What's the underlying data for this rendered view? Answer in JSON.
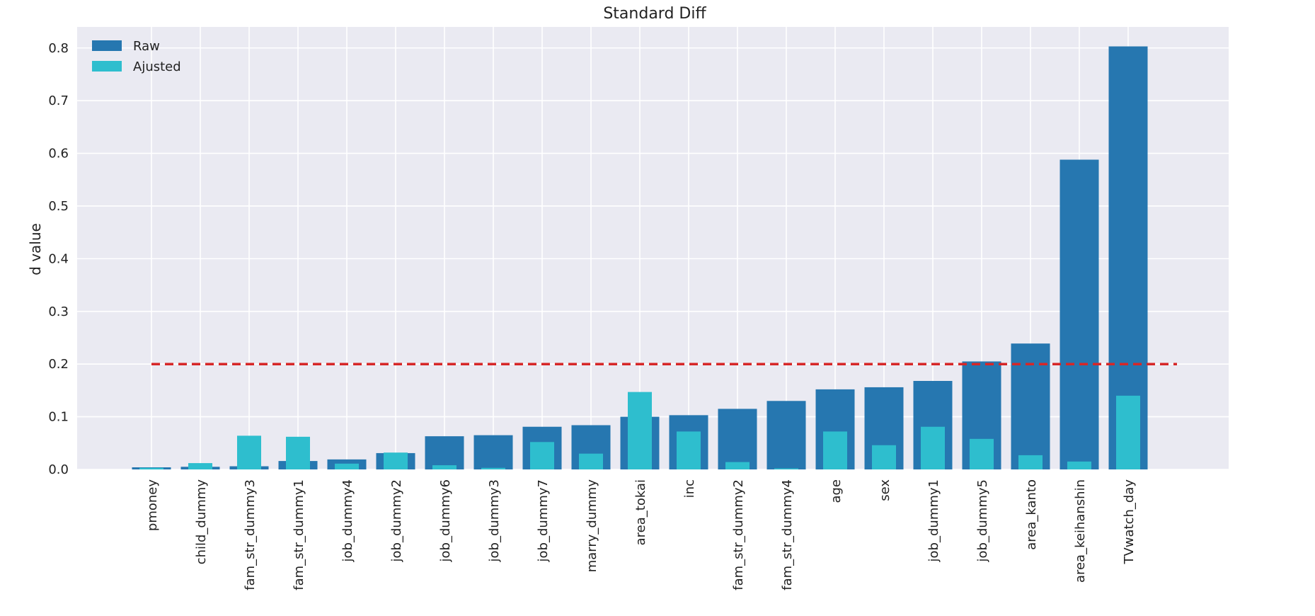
{
  "chart_data": {
    "type": "bar",
    "title": "Standard Diff",
    "xlabel": "",
    "ylabel": "d value",
    "ylim": [
      0,
      0.84
    ],
    "yticks": [
      0.0,
      0.1,
      0.2,
      0.3,
      0.4,
      0.5,
      0.6,
      0.7,
      0.8
    ],
    "ytick_labels": [
      "0.0",
      "0.1",
      "0.2",
      "0.3",
      "0.4",
      "0.5",
      "0.6",
      "0.7",
      "0.8"
    ],
    "grid": true,
    "legend_position": "top-left",
    "categories": [
      "pmoney",
      "child_dummy",
      "fam_str_dummy3",
      "fam_str_dummy1",
      "job_dummy4",
      "job_dummy2",
      "job_dummy6",
      "job_dummy3",
      "job_dummy7",
      "marry_dummy",
      "area_tokai",
      "inc",
      "fam_str_dummy2",
      "fam_str_dummy4",
      "age",
      "sex",
      "job_dummy1",
      "job_dummy5",
      "area_kanto",
      "area_keihanshin",
      "TVwatch_day"
    ],
    "series": [
      {
        "name": "Raw",
        "color": "#2677b0",
        "values": [
          0.004,
          0.005,
          0.006,
          0.016,
          0.019,
          0.031,
          0.063,
          0.065,
          0.081,
          0.084,
          0.1,
          0.103,
          0.115,
          0.13,
          0.152,
          0.156,
          0.168,
          0.205,
          0.239,
          0.588,
          0.803
        ]
      },
      {
        "name": "Ajusted",
        "color": "#2ebece",
        "values": [
          0.003,
          0.012,
          0.064,
          0.062,
          0.011,
          0.032,
          0.008,
          0.003,
          0.052,
          0.03,
          0.147,
          0.072,
          0.014,
          0.002,
          0.072,
          0.046,
          0.081,
          0.058,
          0.027,
          0.015,
          0.14
        ]
      }
    ],
    "threshold": {
      "value": 0.2,
      "color": "#d62728",
      "style": "dashed"
    }
  },
  "colors": {
    "background": "#eaeaf2",
    "grid": "#ffffff"
  }
}
